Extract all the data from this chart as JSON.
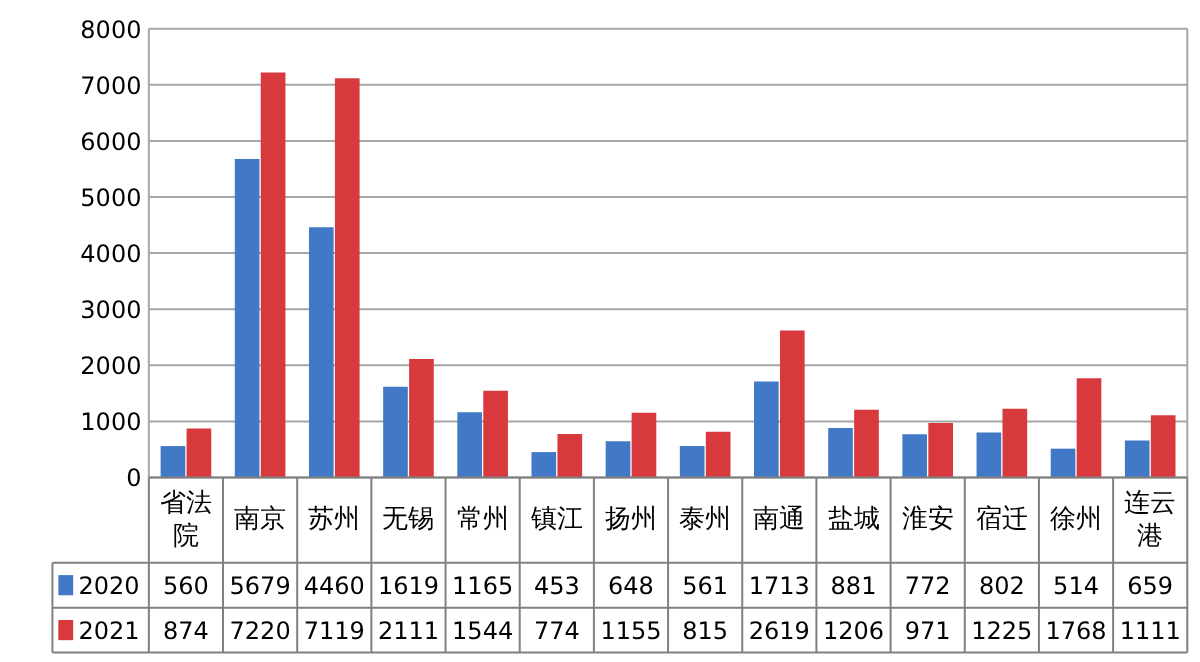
{
  "chart_data": {
    "type": "bar",
    "categories": [
      "省法院",
      "南京",
      "苏州",
      "无锡",
      "常州",
      "镇江",
      "扬州",
      "泰州",
      "南通",
      "盐城",
      "淮安",
      "宿迁",
      "徐州",
      "连云港"
    ],
    "series": [
      {
        "name": "2020",
        "color": "#4279c7",
        "values": [
          560,
          5679,
          4460,
          1619,
          1165,
          453,
          648,
          561,
          1713,
          881,
          772,
          802,
          514,
          659
        ]
      },
      {
        "name": "2021",
        "color": "#d7393d",
        "values": [
          874,
          7220,
          7119,
          2111,
          1544,
          774,
          1155,
          815,
          2619,
          1206,
          971,
          1225,
          1768,
          1111
        ]
      }
    ],
    "ylim": [
      0,
      8000
    ],
    "yticks": [
      0,
      1000,
      2000,
      3000,
      4000,
      5000,
      6000,
      7000,
      8000
    ],
    "grid": "y",
    "legend": "bottom",
    "data_labels": true
  }
}
